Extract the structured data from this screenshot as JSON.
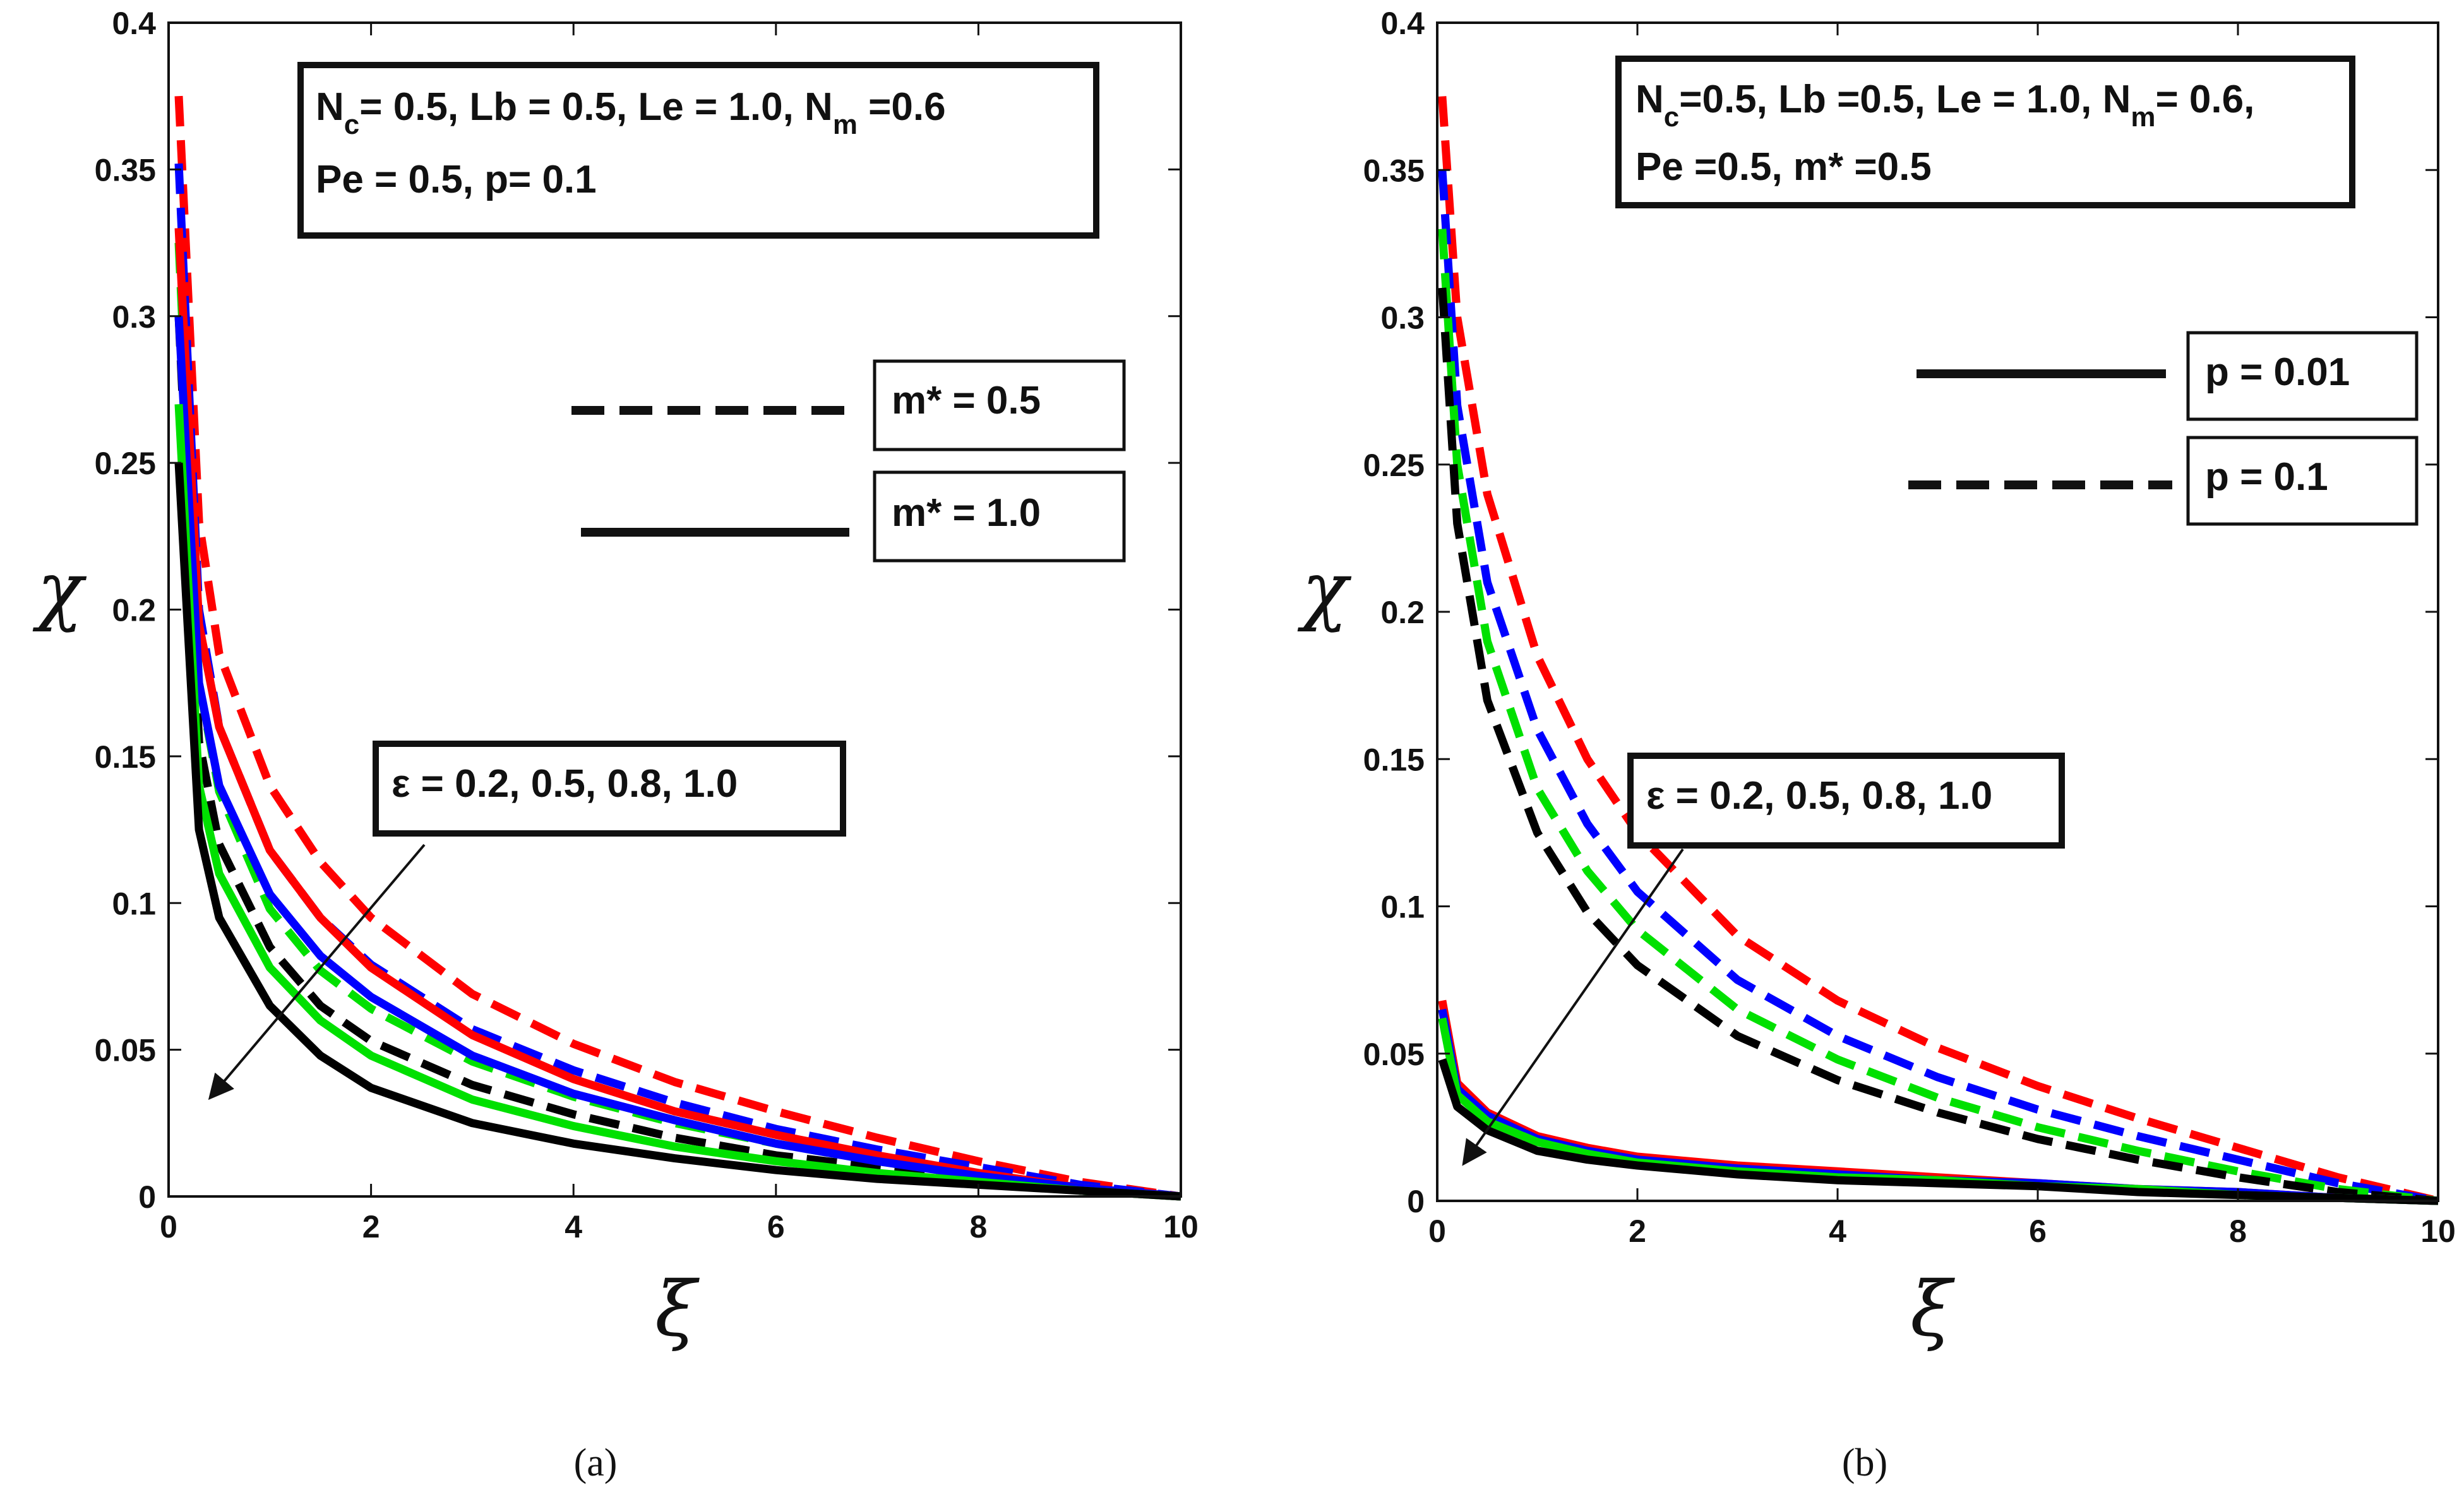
{
  "panels": [
    {
      "id": "a",
      "caption": "(a)",
      "xlabel": "ξ",
      "ylabel": "χ",
      "xlim": [
        0,
        10
      ],
      "ylim": [
        0,
        0.4
      ],
      "xticks": [
        0,
        2,
        4,
        6,
        8,
        10
      ],
      "yticks": [
        0,
        0.05,
        0.1,
        0.15,
        0.2,
        0.25,
        0.3,
        0.35,
        0.4
      ],
      "xtick_labels": [
        "0",
        "2",
        "4",
        "6",
        "8",
        "10"
      ],
      "ytick_labels": [
        "0",
        "0.05",
        "0.1",
        "0.15",
        "0.2",
        "0.25",
        "0.3",
        "0.35",
        "0.4"
      ],
      "params": {
        "line1": {
          "nc": "N",
          "nc_sub": "c",
          "nc_val": "= 0.5, Lb = 0.5, Le = 1.0, N",
          "nm_sub": "m",
          "nm_val": " =0.6"
        },
        "line2": "Pe =  0.5, p= 0.1"
      },
      "legend": [
        {
          "style": "dashed",
          "label": "m* = 0.5"
        },
        {
          "style": "solid",
          "label": "m* = 1.0"
        }
      ],
      "annotation": "ε = 0.2, 0.5, 0.8, 1.0"
    },
    {
      "id": "b",
      "caption": "(b)",
      "xlabel": "ξ",
      "ylabel": "χ",
      "xlim": [
        0,
        10
      ],
      "ylim": [
        0,
        0.4
      ],
      "xticks": [
        0,
        2,
        4,
        6,
        8,
        10
      ],
      "yticks": [
        0,
        0.05,
        0.1,
        0.15,
        0.2,
        0.25,
        0.3,
        0.35,
        0.4
      ],
      "xtick_labels": [
        "0",
        "2",
        "4",
        "6",
        "8",
        "10"
      ],
      "ytick_labels": [
        "0",
        "0.05",
        "0.1",
        "0.15",
        "0.2",
        "0.25",
        "0.3",
        "0.35",
        "0.4"
      ],
      "params": {
        "line1": {
          "nc": "N",
          "nc_sub": "c",
          "nc_val": "=0.5, Lb =0.5, Le = 1.0, N",
          "nm_sub": "m",
          "nm_val": "= 0.6,"
        },
        "line2": "Pe =0.5, m* =0.5"
      },
      "legend": [
        {
          "style": "solid",
          "label": "p = 0.01"
        },
        {
          "style": "dashed",
          "label": "p = 0.1"
        }
      ],
      "annotation": "ε = 0.2, 0.5, 0.8, 1.0"
    }
  ],
  "colors": {
    "eps_0_2": "#ff0000",
    "eps_0_5": "#0000ff",
    "eps_0_8": "#00e000",
    "eps_1_0": "#000000"
  },
  "chart_data": [
    {
      "type": "line",
      "panel": "a",
      "title": "",
      "xlabel": "ξ",
      "ylabel": "χ",
      "xlim": [
        0,
        10
      ],
      "ylim": [
        0,
        0.4
      ],
      "x": [
        0.1,
        0.3,
        0.5,
        1,
        1.5,
        2,
        3,
        4,
        5,
        6,
        7,
        8,
        9,
        10
      ],
      "series": [
        {
          "name": "m* = 0.5, ε = 0.2",
          "style": "dashed",
          "color": "#ff0000",
          "values": [
            0.375,
            0.23,
            0.185,
            0.14,
            0.114,
            0.095,
            0.069,
            0.052,
            0.039,
            0.029,
            0.02,
            0.012,
            0.005,
            0.0
          ]
        },
        {
          "name": "m* = 0.5, ε = 0.5",
          "style": "dashed",
          "color": "#0000ff",
          "values": [
            0.352,
            0.2,
            0.16,
            0.118,
            0.095,
            0.079,
            0.057,
            0.043,
            0.032,
            0.023,
            0.016,
            0.01,
            0.004,
            0.0
          ]
        },
        {
          "name": "m* = 0.5, ε = 0.8",
          "style": "dashed",
          "color": "#00e000",
          "values": [
            0.325,
            0.175,
            0.138,
            0.098,
            0.077,
            0.064,
            0.046,
            0.034,
            0.025,
            0.018,
            0.012,
            0.007,
            0.003,
            0.0
          ]
        },
        {
          "name": "m* = 0.5, ε = 1.0",
          "style": "dashed",
          "color": "#000000",
          "values": [
            0.3,
            0.155,
            0.12,
            0.085,
            0.065,
            0.053,
            0.038,
            0.028,
            0.02,
            0.014,
            0.01,
            0.006,
            0.002,
            0.0
          ]
        },
        {
          "name": "m* = 1.0, ε = 0.2",
          "style": "solid",
          "color": "#ff0000",
          "values": [
            0.33,
            0.195,
            0.16,
            0.118,
            0.095,
            0.078,
            0.055,
            0.04,
            0.029,
            0.021,
            0.014,
            0.008,
            0.003,
            0.0
          ]
        },
        {
          "name": "m* = 1.0, ε = 0.5",
          "style": "solid",
          "color": "#0000ff",
          "values": [
            0.3,
            0.175,
            0.14,
            0.103,
            0.082,
            0.068,
            0.048,
            0.035,
            0.026,
            0.018,
            0.012,
            0.007,
            0.003,
            0.0
          ]
        },
        {
          "name": "m* = 1.0, ε = 0.8",
          "style": "solid",
          "color": "#00e000",
          "values": [
            0.27,
            0.14,
            0.11,
            0.078,
            0.06,
            0.048,
            0.033,
            0.024,
            0.017,
            0.012,
            0.008,
            0.005,
            0.002,
            0.0
          ]
        },
        {
          "name": "m* = 1.0, ε = 1.0",
          "style": "solid",
          "color": "#000000",
          "values": [
            0.25,
            0.125,
            0.095,
            0.065,
            0.048,
            0.037,
            0.025,
            0.018,
            0.013,
            0.009,
            0.006,
            0.004,
            0.002,
            0.0
          ]
        }
      ]
    },
    {
      "type": "line",
      "panel": "b",
      "title": "",
      "xlabel": "ξ",
      "ylabel": "χ",
      "xlim": [
        0,
        10
      ],
      "ylim": [
        0,
        0.4
      ],
      "x": [
        0.05,
        0.2,
        0.5,
        1,
        1.5,
        2,
        3,
        4,
        5,
        6,
        7,
        8,
        9,
        10
      ],
      "series": [
        {
          "name": "p = 0.1, ε = 0.2",
          "style": "dashed",
          "color": "#ff0000",
          "values": [
            0.375,
            0.3,
            0.24,
            0.185,
            0.15,
            0.125,
            0.09,
            0.068,
            0.052,
            0.039,
            0.028,
            0.018,
            0.008,
            0.0
          ]
        },
        {
          "name": "p = 0.1, ε = 0.5",
          "style": "dashed",
          "color": "#0000ff",
          "values": [
            0.35,
            0.27,
            0.21,
            0.16,
            0.128,
            0.105,
            0.075,
            0.056,
            0.042,
            0.031,
            0.022,
            0.014,
            0.006,
            0.0
          ]
        },
        {
          "name": "p = 0.1, ε = 0.8",
          "style": "dashed",
          "color": "#00e000",
          "values": [
            0.33,
            0.25,
            0.19,
            0.14,
            0.112,
            0.092,
            0.065,
            0.048,
            0.035,
            0.025,
            0.017,
            0.01,
            0.004,
            0.0
          ]
        },
        {
          "name": "p = 0.1, ε = 1.0",
          "style": "dashed",
          "color": "#000000",
          "values": [
            0.31,
            0.23,
            0.17,
            0.125,
            0.098,
            0.08,
            0.056,
            0.041,
            0.03,
            0.021,
            0.014,
            0.008,
            0.003,
            0.0
          ]
        },
        {
          "name": "p = 0.01, ε = 0.2",
          "style": "solid",
          "color": "#ff0000",
          "values": [
            0.068,
            0.04,
            0.03,
            0.022,
            0.018,
            0.015,
            0.012,
            0.01,
            0.008,
            0.006,
            0.004,
            0.003,
            0.001,
            0.0
          ]
        },
        {
          "name": "p = 0.01, ε = 0.5",
          "style": "solid",
          "color": "#0000ff",
          "values": [
            0.065,
            0.038,
            0.029,
            0.021,
            0.017,
            0.014,
            0.011,
            0.009,
            0.007,
            0.006,
            0.004,
            0.003,
            0.001,
            0.0
          ]
        },
        {
          "name": "p = 0.01, ε = 0.8",
          "style": "solid",
          "color": "#00e000",
          "values": [
            0.062,
            0.036,
            0.027,
            0.02,
            0.016,
            0.013,
            0.01,
            0.008,
            0.007,
            0.005,
            0.004,
            0.002,
            0.001,
            0.0
          ]
        },
        {
          "name": "p = 0.01, ε = 1.0",
          "style": "solid",
          "color": "#000000",
          "values": [
            0.048,
            0.032,
            0.024,
            0.017,
            0.014,
            0.012,
            0.009,
            0.007,
            0.006,
            0.005,
            0.003,
            0.002,
            0.001,
            0.0
          ]
        }
      ]
    }
  ]
}
